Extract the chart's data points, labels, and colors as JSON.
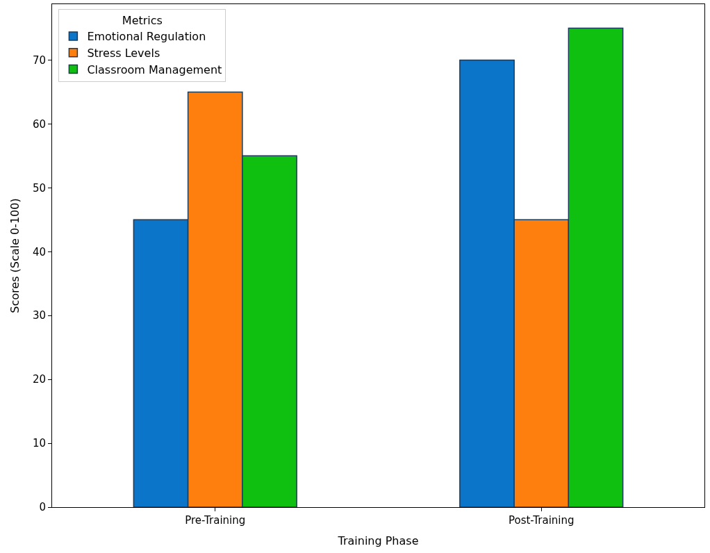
{
  "chart_data": {
    "type": "bar",
    "xlabel": "Training Phase",
    "ylabel": "Scores (Scale 0-100)",
    "legend_title": "Metrics",
    "categories": [
      "Pre-Training",
      "Post-Training"
    ],
    "series": [
      {
        "name": "Emotional Regulation",
        "color": "#0a75c9",
        "values": [
          45,
          70
        ]
      },
      {
        "name": "Stress Levels",
        "color": "#ff7f0e",
        "values": [
          65,
          45
        ]
      },
      {
        "name": "Classroom Management",
        "color": "#10c010",
        "values": [
          55,
          75
        ]
      }
    ],
    "ylim": [
      0,
      78.75
    ],
    "yticks": [
      0,
      10,
      20,
      30,
      40,
      50,
      60,
      70
    ],
    "grid": false,
    "legend": "top left"
  }
}
